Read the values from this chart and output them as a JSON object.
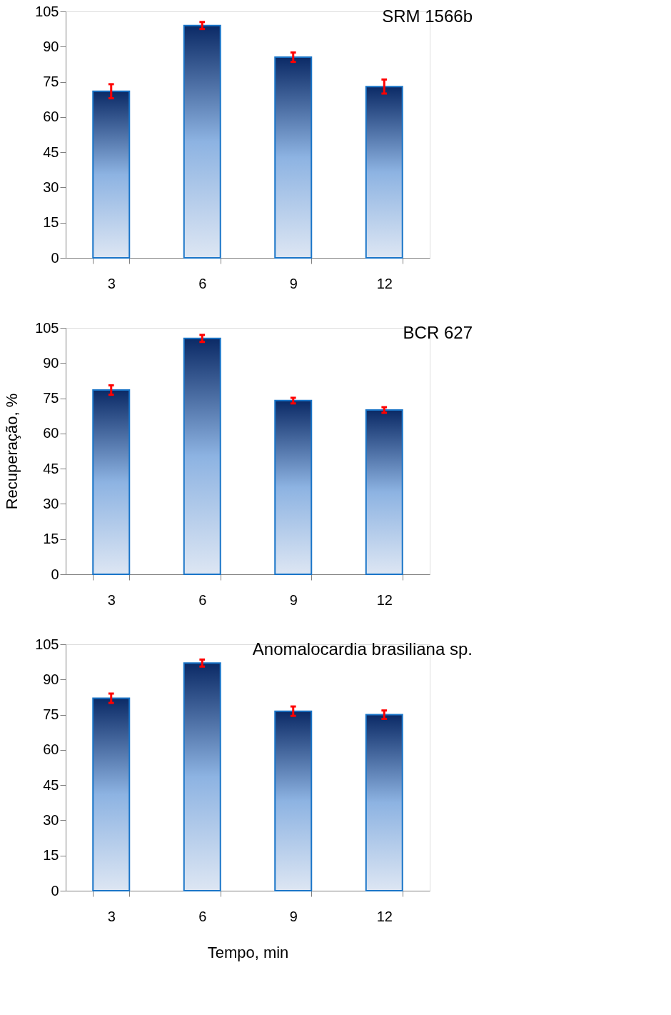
{
  "chart_data": [
    {
      "type": "bar",
      "title": "SRM 1566b",
      "categories": [
        "3",
        "6",
        "9",
        "12"
      ],
      "values": [
        71,
        99,
        85.5,
        73
      ],
      "errors": [
        3,
        1.5,
        2,
        3
      ],
      "color": "#1a75c8",
      "ylim": [
        0,
        105
      ],
      "yticks": [
        0,
        15,
        30,
        45,
        60,
        75,
        90,
        105
      ],
      "grid": false
    },
    {
      "type": "bar",
      "title": "BCR 627",
      "ylabel": "Recuperação, %",
      "categories": [
        "3",
        "6",
        "9",
        "12"
      ],
      "values": [
        78.5,
        100.5,
        74,
        70
      ],
      "errors": [
        2,
        1.5,
        1.2,
        1.2
      ],
      "color": "#1a75c8",
      "ylim": [
        0,
        105
      ],
      "yticks": [
        0,
        15,
        30,
        45,
        60,
        75,
        90,
        105
      ],
      "grid": false
    },
    {
      "type": "bar",
      "title": "Anomalocardia brasiliana sp.",
      "xlabel": "Tempo, min",
      "categories": [
        "3",
        "6",
        "9",
        "12"
      ],
      "values": [
        82,
        97,
        76.5,
        75
      ],
      "errors": [
        2,
        1.5,
        2,
        1.8
      ],
      "color": "#1a75c8",
      "ylim": [
        0,
        105
      ],
      "yticks": [
        0,
        15,
        30,
        45,
        60,
        75,
        90,
        105
      ],
      "grid": false
    }
  ]
}
